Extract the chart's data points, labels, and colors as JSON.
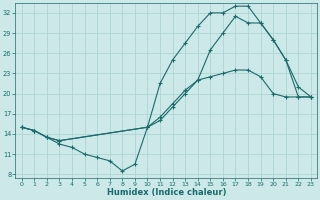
{
  "xlabel": "Humidex (Indice chaleur)",
  "background_color": "#cce8e8",
  "line_color": "#1a6b6b",
  "grid_color": "#aed4d4",
  "xlim": [
    -0.5,
    23.5
  ],
  "ylim": [
    7.5,
    33.5
  ],
  "yticks": [
    8,
    11,
    14,
    17,
    20,
    23,
    26,
    29,
    32
  ],
  "xticks": [
    0,
    1,
    2,
    3,
    4,
    5,
    6,
    7,
    8,
    9,
    10,
    11,
    12,
    13,
    14,
    15,
    16,
    17,
    18,
    19,
    20,
    21,
    22,
    23
  ],
  "line1_x": [
    0,
    1,
    2,
    3,
    10,
    11,
    12,
    13,
    14,
    15,
    16,
    17,
    18,
    19,
    20,
    21,
    22,
    23
  ],
  "line1_y": [
    15.0,
    14.5,
    13.5,
    13.0,
    15.0,
    16.0,
    18.0,
    20.0,
    22.0,
    26.5,
    29.0,
    31.5,
    30.5,
    30.5,
    28.0,
    25.0,
    19.5,
    19.5
  ],
  "line2_x": [
    0,
    1,
    2,
    3,
    10,
    11,
    12,
    13,
    14,
    15,
    16,
    17,
    18,
    19,
    20,
    21,
    22,
    23
  ],
  "line2_y": [
    15.0,
    14.5,
    13.5,
    13.0,
    15.0,
    21.5,
    25.0,
    27.5,
    30.0,
    32.0,
    32.0,
    33.0,
    33.0,
    30.5,
    28.0,
    25.0,
    21.0,
    19.5
  ],
  "line3_x": [
    0,
    1,
    2,
    3,
    4,
    5,
    6,
    7,
    8,
    9,
    10,
    11,
    12,
    13,
    14,
    15,
    16,
    17,
    18,
    19,
    20,
    21,
    22,
    23
  ],
  "line3_y": [
    15.0,
    14.5,
    13.5,
    12.5,
    12.0,
    11.0,
    10.5,
    10.0,
    8.5,
    9.5,
    15.0,
    16.5,
    18.5,
    20.5,
    22.0,
    22.5,
    23.0,
    23.5,
    23.5,
    22.5,
    20.0,
    19.5,
    19.5,
    19.5
  ]
}
